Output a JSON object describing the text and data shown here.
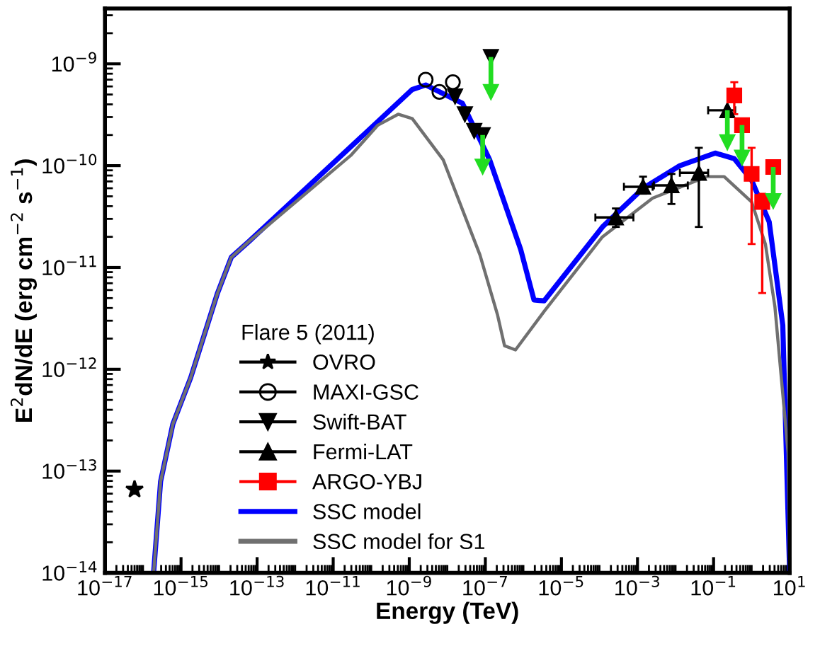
{
  "chart_data": {
    "type": "scatter",
    "xlabel": "Energy (TeV)",
    "ylabel": "E$^{2}$dN/dE (erg cm$^{−2}$ s$^{−1}$)",
    "legend_title": "Flare 5 (2011)",
    "legend": "bottom left",
    "log": "xy",
    "grid": false,
    "xlim": [
      1e-17,
      10
    ],
    "ylim": [
      1e-14,
      3.5e-09
    ],
    "xticks": [
      {
        "value": 1e-17,
        "label": "10$^{−17}$"
      },
      {
        "value": 1e-15,
        "label": "10$^{−15}$"
      },
      {
        "value": 1e-13,
        "label": "10$^{−13}$"
      },
      {
        "value": 1e-11,
        "label": "10$^{−11}$"
      },
      {
        "value": 1e-09,
        "label": "10$^{−9}$"
      },
      {
        "value": 1e-07,
        "label": "10$^{−7}$"
      },
      {
        "value": 1e-05,
        "label": "10$^{−5}$"
      },
      {
        "value": 0.001,
        "label": "10$^{−3}$"
      },
      {
        "value": 0.1,
        "label": "10$^{−1}$"
      },
      {
        "value": 10,
        "label": "10$^{1}$"
      }
    ],
    "yticks": [
      {
        "value": 1e-14,
        "label": "10$^{−14}$"
      },
      {
        "value": 1e-13,
        "label": "10$^{−13}$"
      },
      {
        "value": 1e-12,
        "label": "10$^{−12}$"
      },
      {
        "value": 1e-11,
        "label": "10$^{−11}$"
      },
      {
        "value": 1e-10,
        "label": "10$^{−10}$"
      },
      {
        "value": 1e-09,
        "label": "10$^{−9}$"
      }
    ],
    "series": [
      {
        "name": "OVRO",
        "color": "#000000",
        "marker": "star",
        "x": [
          6e-17
        ],
        "values": [
          6.6e-14
        ]
      },
      {
        "name": "MAXI-GSC",
        "color": "#000000",
        "marker": "circle",
        "x": [
          2.7e-09,
          6.2e-09,
          1.4e-08
        ],
        "values": [
          7e-10,
          5.3e-10,
          6.6e-10
        ]
      },
      {
        "name": "Swift-BAT",
        "color": "#000000",
        "marker": "triangle_down",
        "x": [
          1.6e-08,
          2.9e-08,
          5.1e-08,
          8.5e-08,
          1.4e-07
        ],
        "values": [
          4.8e-10,
          3.2e-10,
          2.2e-10,
          2e-10,
          1.17e-09
        ]
      },
      {
        "name": "Fermi-LAT",
        "color": "#000000",
        "marker": "triangle",
        "x": [
          0.00027,
          0.0014,
          0.0078,
          0.041,
          0.23
        ],
        "values": [
          3.1e-11,
          6.2e-11,
          6.4e-11,
          8.5e-11,
          3.5e-10
        ],
        "errors": [
          [
            2.5e-11,
            3.8e-11
          ],
          [
            5.3e-11,
            7.8e-11
          ],
          [
            4.2e-11,
            8.3e-11
          ],
          [
            2.5e-11,
            1.5e-10
          ],
          null
        ],
        "xerrors": [
          [
            7.8e-05,
            0.00078
          ],
          [
            0.00044,
            0.0025
          ],
          [
            0.0027,
            0.021
          ],
          [
            0.013,
            0.072
          ],
          [
            0.072,
            0.37
          ]
        ]
      },
      {
        "name": "ARGO-YBJ",
        "color": "#ff0000",
        "marker": "square",
        "x": [
          0.35,
          0.56,
          1.0,
          1.9,
          3.7
        ],
        "values": [
          4.9e-10,
          2.5e-10,
          8.3e-11,
          4.4e-11,
          9.7e-11
        ],
        "errors": [
          [
            3.2e-10,
            6.6e-10
          ],
          null,
          [
            1.7e-11,
            1.5e-10
          ],
          [
            5.6e-12,
            5.3e-11
          ],
          null
        ]
      },
      {
        "color": "#22dd22",
        "marker": "triangle_down",
        "x": [
          8.5e-08,
          1.4e-07,
          0.23,
          0.56,
          3.7
        ],
        "values": [
          9.8e-11,
          5.3e-10,
          1.7e-10,
          1.2e-10,
          4.5e-11
        ],
        "errors": [
          [
            9.8e-11,
            2e-10
          ],
          [
            5.3e-10,
            1.17e-09
          ],
          [
            1.7e-10,
            3.5e-10
          ],
          [
            1.2e-10,
            2.5e-10
          ],
          [
            4.5e-11,
            9.7e-11
          ]
        ]
      },
      {
        "name": "SSC model",
        "type": "line",
        "color": "#0000ff",
        "line_style": "solid",
        "x": [
          1.9e-16,
          2.9e-16,
          6.1e-16,
          1.8e-15,
          9.1e-15,
          2.1e-14,
          6.1e-14,
          1.2e-09,
          2.7e-09,
          2.5e-08,
          1.3e-07,
          8.5e-07,
          1.9e-06,
          3.5e-06,
          0.00012,
          0.0014,
          0.013,
          0.11,
          0.35,
          1.0,
          2.9,
          6.6,
          10
        ],
        "values": [
          1e-14,
          7.9e-14,
          2.9e-13,
          8.3e-13,
          5.6e-12,
          1.26e-11,
          1.8e-11,
          5.6e-10,
          6.2e-10,
          4.1e-10,
          1.14e-10,
          1.5e-11,
          4.8e-12,
          4.7e-12,
          2.5e-11,
          6e-11,
          1e-10,
          1.33e-10,
          1.17e-10,
          7.2e-11,
          2.8e-11,
          2.7e-12,
          1e-14
        ]
      },
      {
        "name": "SSC model for S1",
        "type": "line",
        "color": "#707070",
        "line_style": "solid",
        "x": [
          1.9e-16,
          2.9e-16,
          6.1e-16,
          1.8e-15,
          9.1e-15,
          2.1e-14,
          6.1e-14,
          2.9e-11,
          1.5e-10,
          5.1e-10,
          1.2e-09,
          7.8e-09,
          7.2e-08,
          2.1e-07,
          3.2e-07,
          6.2e-07,
          3.5e-06,
          0.00012,
          0.0025,
          0.066,
          0.19,
          1.0,
          2.3,
          4.1,
          9.1,
          10
        ],
        "values": [
          1e-14,
          7.9e-14,
          2.9e-13,
          8.3e-13,
          5.6e-12,
          1.26e-11,
          1.8e-11,
          1.26e-10,
          2.5e-10,
          3.2e-10,
          2.9e-10,
          1.14e-10,
          1.33e-11,
          3.4e-12,
          1.7e-12,
          1.55e-12,
          3.7e-12,
          2e-11,
          4.8e-11,
          7.8e-11,
          7.8e-11,
          4.4e-11,
          1.7e-11,
          4.1e-12,
          1.5e-13,
          1.2e-14
        ]
      }
    ]
  }
}
